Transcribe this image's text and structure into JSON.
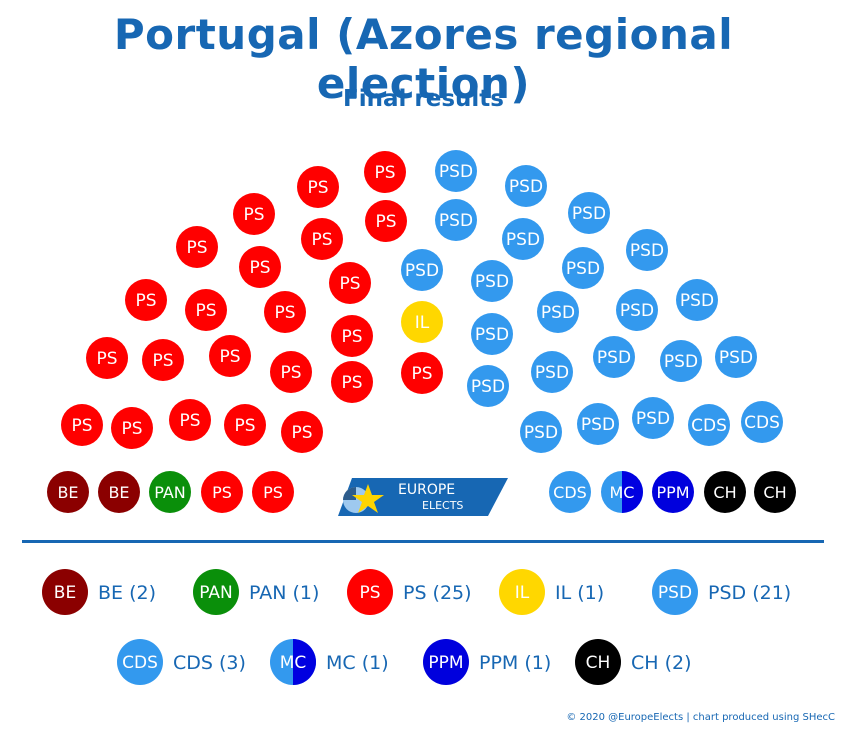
{
  "title": "Portugal (Azores regional election)",
  "subtitle": "Final results",
  "credit": "© 2020 @EuropeElects | chart produced using SHecC",
  "logo": {
    "line1": "EUROPE",
    "line2": "ELECTS"
  },
  "chart_data": {
    "type": "parliament",
    "total_seats": 57,
    "parties": [
      {
        "key": "BE",
        "label": "BE",
        "legend": "BE (2)",
        "seats": 2,
        "color": "#8b0000"
      },
      {
        "key": "PAN",
        "label": "PAN",
        "legend": "PAN (1)",
        "seats": 1,
        "color": "#0a8f0a"
      },
      {
        "key": "PS",
        "label": "PS",
        "legend": "PS (25)",
        "seats": 25,
        "color": "#ff0000"
      },
      {
        "key": "IL",
        "label": "IL",
        "legend": "IL (1)",
        "seats": 1,
        "color": "#ffd700"
      },
      {
        "key": "PSD",
        "label": "PSD",
        "legend": "PSD (21)",
        "seats": 21,
        "color": "#3399ee"
      },
      {
        "key": "CDS",
        "label": "CDS",
        "legend": "CDS (3)",
        "seats": 3,
        "color": "#3399ee"
      },
      {
        "key": "MC",
        "label": "MC",
        "legend": "MC (1)",
        "seats": 1,
        "color": "#3399ee",
        "color2": "#0000e0"
      },
      {
        "key": "PPM",
        "label": "PPM",
        "legend": "PPM (1)",
        "seats": 1,
        "color": "#0000dd"
      },
      {
        "key": "CH",
        "label": "CH",
        "legend": "CH (2)",
        "seats": 2,
        "color": "#000000"
      }
    ]
  }
}
